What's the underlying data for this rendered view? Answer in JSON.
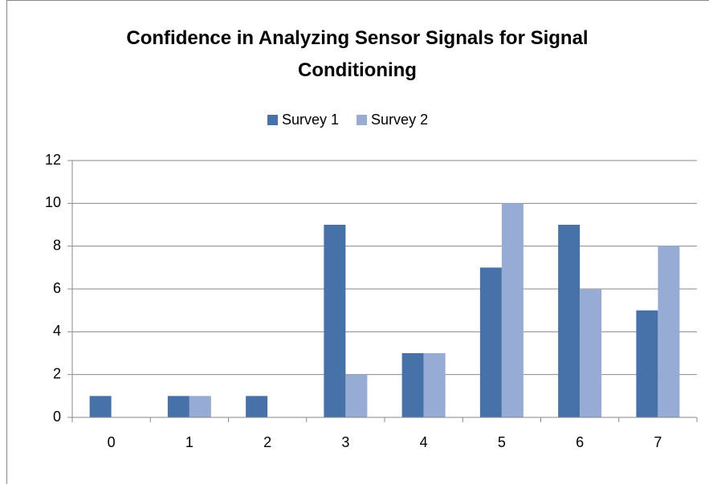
{
  "chart_data": {
    "type": "bar",
    "title": "Confidence in Analyzing Sensor Signals for Signal Conditioning",
    "categories": [
      "0",
      "1",
      "2",
      "3",
      "4",
      "5",
      "6",
      "7"
    ],
    "series": [
      {
        "name": "Survey 1",
        "color": "#4672a9",
        "values": [
          1,
          1,
          1,
          9,
          3,
          7,
          9,
          5
        ]
      },
      {
        "name": "Survey 2",
        "color": "#97acd4",
        "values": [
          0,
          1,
          0,
          2,
          3,
          10,
          6,
          8
        ]
      }
    ],
    "ylim": [
      0,
      12
    ],
    "yticks": [
      0,
      2,
      4,
      6,
      8,
      10,
      12
    ],
    "grid": true,
    "legend": "top"
  }
}
